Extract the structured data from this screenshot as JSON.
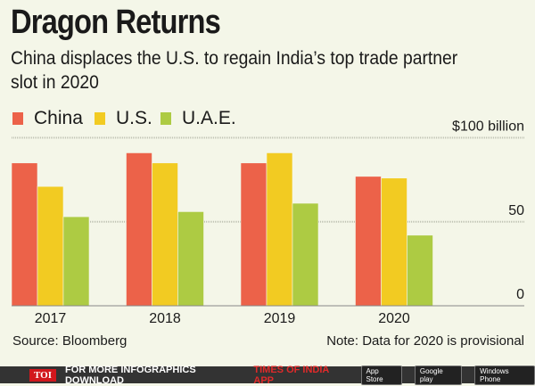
{
  "title": "Dragon Returns",
  "subtitle": "China displaces the U.S. to regain India’s top trade partner slot in 2020",
  "source": "Source: Bloomberg",
  "note": "Note: Data for 2020 is provisional",
  "footer": {
    "logo": "TOI",
    "text": "FOR MORE  INFOGRAPHICS DOWNLOAD",
    "highlight": "TIMES OF INDIA  APP",
    "badges": [
      "App Store",
      "Google play",
      "Windows Phone"
    ]
  },
  "chart_data": {
    "type": "bar",
    "categories": [
      "2017",
      "2018",
      "2019",
      "2020"
    ],
    "series": [
      {
        "name": "China",
        "color": "#ec6249",
        "values": [
          85,
          91,
          85,
          77
        ]
      },
      {
        "name": "U.S.",
        "color": "#f2cb22",
        "values": [
          71,
          85,
          91,
          76
        ]
      },
      {
        "name": "U.A.E.",
        "color": "#adcb43",
        "values": [
          53,
          56,
          61,
          42
        ]
      }
    ],
    "yticks": [
      "0",
      "50",
      "$100 billion"
    ],
    "ylim": [
      0,
      100
    ],
    "grid": true,
    "legend": "top-left"
  }
}
